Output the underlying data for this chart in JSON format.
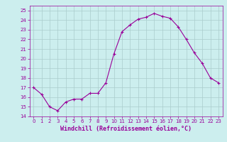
{
  "hours": [
    0,
    1,
    2,
    3,
    4,
    5,
    6,
    7,
    8,
    9,
    10,
    11,
    12,
    13,
    14,
    15,
    16,
    17,
    18,
    19,
    20,
    21,
    22,
    23
  ],
  "values": [
    17.0,
    16.3,
    15.0,
    14.6,
    15.5,
    15.8,
    15.8,
    16.4,
    16.4,
    17.5,
    20.5,
    22.8,
    23.5,
    24.1,
    24.3,
    24.7,
    24.4,
    24.2,
    23.3,
    22.0,
    20.6,
    19.5,
    18.0,
    17.5
  ],
  "line_color": "#990099",
  "marker": "+",
  "marker_size": 3,
  "bg_color": "#cceeee",
  "grid_color": "#aacccc",
  "xlabel": "Windchill (Refroidissement éolien,°C)",
  "ylim": [
    14,
    25.5
  ],
  "xlim": [
    -0.5,
    23.5
  ],
  "yticks": [
    14,
    15,
    16,
    17,
    18,
    19,
    20,
    21,
    22,
    23,
    24,
    25
  ],
  "xticks": [
    0,
    1,
    2,
    3,
    4,
    5,
    6,
    7,
    8,
    9,
    10,
    11,
    12,
    13,
    14,
    15,
    16,
    17,
    18,
    19,
    20,
    21,
    22,
    23
  ],
  "tick_color": "#990099",
  "label_color": "#990099",
  "tick_fontsize": 5.0,
  "xlabel_fontsize": 6.0
}
